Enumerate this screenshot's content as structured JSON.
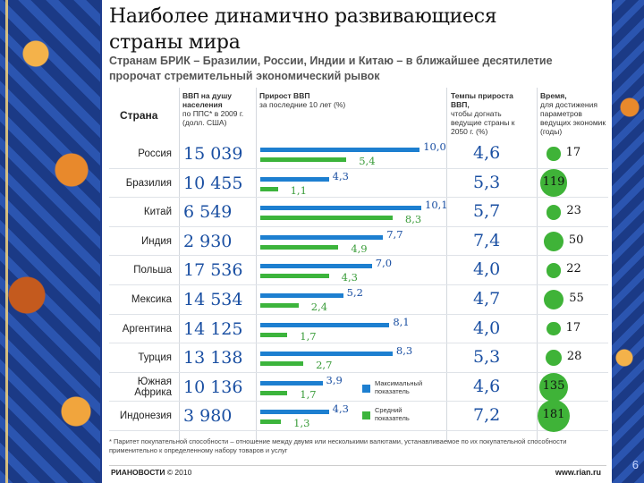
{
  "title_line1": "Наиболее динамично развивающиеся",
  "title_line2": "страны мира",
  "subtitle": "Странам БРИК – Бразилии, России, Индии и Китаю – в ближайшее десятилетие пророчат стремительный экономический рывок",
  "chart_data": {
    "type": "table",
    "columns": {
      "country": "Страна",
      "gdp_title": "ВВП на душу населения",
      "gdp_sub": "по ППС* в 2009 г. (долл. США)",
      "growth_title": "Прирост ВВП",
      "growth_sub": "за последние 10 лет (%)",
      "rate_title": "Темпы прироста ВВП,",
      "rate_sub": "чтобы догнать ведущие страны к 2050 г. (%)",
      "time_title": "Время,",
      "time_sub": "для достижения параметров ведущих экономик (годы)"
    },
    "legend": {
      "max": "Максимальный показатель",
      "avg": "Средний показатель"
    },
    "growth_scale_max": 10.1,
    "rows": [
      {
        "country": "Россия",
        "gdp": "15 039",
        "max": 10.0,
        "max_label": "10,0",
        "avg": 5.4,
        "avg_label": "5,4",
        "rate": "4,6",
        "years": 17
      },
      {
        "country": "Бразилия",
        "gdp": "10 455",
        "max": 4.3,
        "max_label": "4,3",
        "avg": 1.1,
        "avg_label": "1,1",
        "rate": "5,3",
        "years": 119
      },
      {
        "country": "Китай",
        "gdp": "6 549",
        "max": 10.1,
        "max_label": "10,1",
        "avg": 8.3,
        "avg_label": "8,3",
        "rate": "5,7",
        "years": 23
      },
      {
        "country": "Индия",
        "gdp": "2 930",
        "max": 7.7,
        "max_label": "7,7",
        "avg": 4.9,
        "avg_label": "4,9",
        "rate": "7,4",
        "years": 50
      },
      {
        "country": "Польша",
        "gdp": "17 536",
        "max": 7.0,
        "max_label": "7,0",
        "avg": 4.3,
        "avg_label": "4,3",
        "rate": "4,0",
        "years": 22
      },
      {
        "country": "Мексика",
        "gdp": "14 534",
        "max": 5.2,
        "max_label": "5,2",
        "avg": 2.4,
        "avg_label": "2,4",
        "rate": "4,7",
        "years": 55
      },
      {
        "country": "Аргентина",
        "gdp": "14 125",
        "max": 8.1,
        "max_label": "8,1",
        "avg": 1.7,
        "avg_label": "1,7",
        "rate": "4,0",
        "years": 17
      },
      {
        "country": "Турция",
        "gdp": "13 138",
        "max": 8.3,
        "max_label": "8,3",
        "avg": 2.7,
        "avg_label": "2,7",
        "rate": "5,3",
        "years": 28
      },
      {
        "country": "Южная Африка",
        "gdp": "10 136",
        "max": 3.9,
        "max_label": "3,9",
        "avg": 1.7,
        "avg_label": "1,7",
        "rate": "4,6",
        "years": 135
      },
      {
        "country": "Индонезия",
        "gdp": "3 980",
        "max": 4.3,
        "max_label": "4,3",
        "avg": 1.3,
        "avg_label": "1,3",
        "rate": "7,2",
        "years": 181
      }
    ]
  },
  "footnote": "* Паритет покупательной способности – отношение между двумя или несколькими валютами, устанавливаемое по их покупательной способности применительно к определенному набору товаров и услуг",
  "logo_brand": "РИАНОВОСТИ",
  "logo_year": "© 2010",
  "site": "www.rian.ru",
  "slide_number": "6",
  "colors": {
    "max_bar": "#1d7fd0",
    "avg_bar": "#3cb43c",
    "circle": "#3fb338",
    "number": "#1a4fa2"
  }
}
